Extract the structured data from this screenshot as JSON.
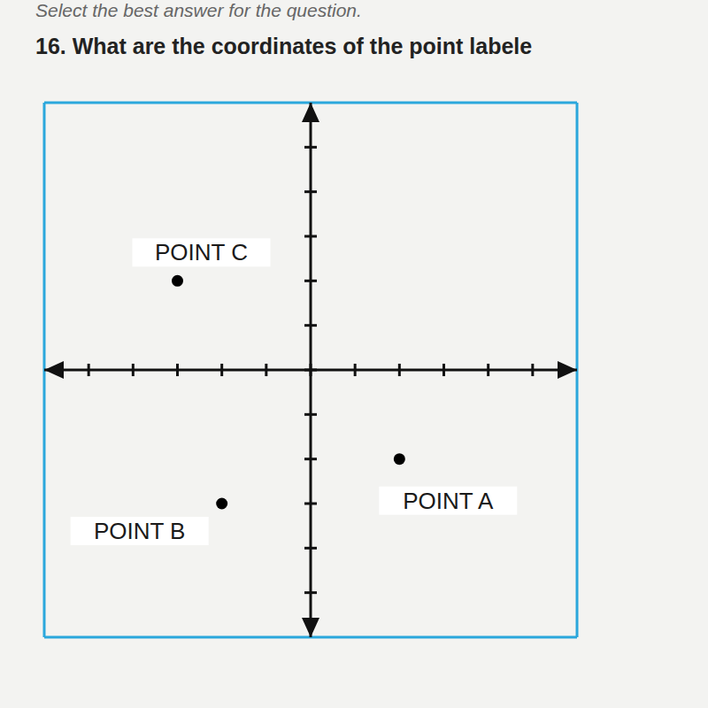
{
  "chart_data": {
    "type": "scatter",
    "title": "16. What are the coordinates of the point labele",
    "subtitle": "Select the best answer for the question.",
    "x": [
      -3,
      -2,
      2
    ],
    "values": [
      2,
      -3,
      -2
    ],
    "annotations": [
      "POINT C",
      "POINT B",
      "POINT A"
    ],
    "color": "#000000",
    "marker": "circle",
    "xlim": [
      -6,
      6
    ],
    "ylim": [
      -6,
      6
    ],
    "xticks": [
      -5,
      -4,
      -3,
      -2,
      -1,
      0,
      1,
      2,
      3,
      4,
      5
    ],
    "yticks": [
      -5,
      -4,
      -3,
      -2,
      -1,
      0,
      1,
      2,
      3,
      4,
      5
    ],
    "grid": true,
    "tick_labels": false
  }
}
